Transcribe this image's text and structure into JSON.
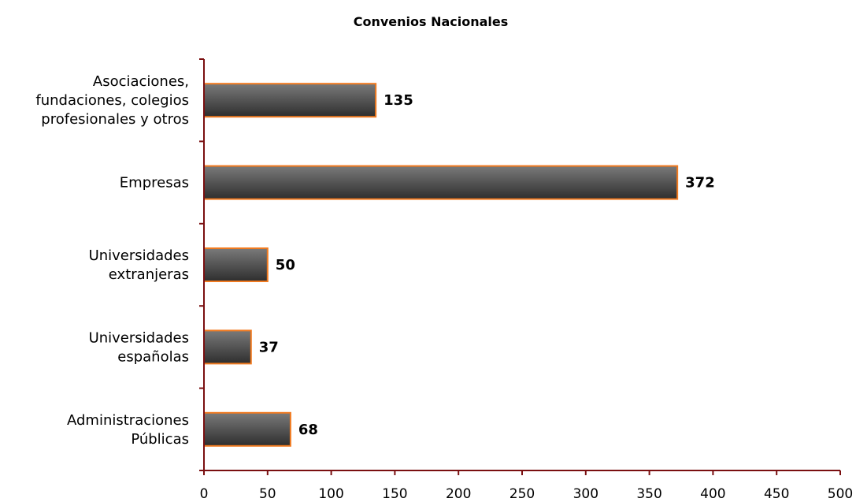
{
  "chart_data": {
    "type": "bar",
    "orientation": "horizontal",
    "title": "Convenios Nacionales",
    "xlabel": "",
    "ylabel": "",
    "xlim": [
      0,
      500
    ],
    "x_ticks": [
      0,
      50,
      100,
      150,
      200,
      250,
      300,
      350,
      400,
      450,
      500
    ],
    "grid": false,
    "legend": "none",
    "categories": [
      [
        "Asociaciones,",
        "fundaciones, colegios",
        "profesionales y otros"
      ],
      [
        "Empresas"
      ],
      [
        "Universidades",
        "extranjeras"
      ],
      [
        "Universidades",
        "españolas"
      ],
      [
        "Administraciones",
        "Públicas"
      ]
    ],
    "values": [
      135,
      372,
      50,
      37,
      68
    ],
    "data_labels": [
      "135",
      "372",
      "50",
      "37",
      "68"
    ]
  },
  "colors": {
    "bar_fill_light": "#7a7a7a",
    "bar_fill_dark": "#2e2e2e",
    "bar_border": "#f07a20",
    "axis": "#7a0f10"
  }
}
